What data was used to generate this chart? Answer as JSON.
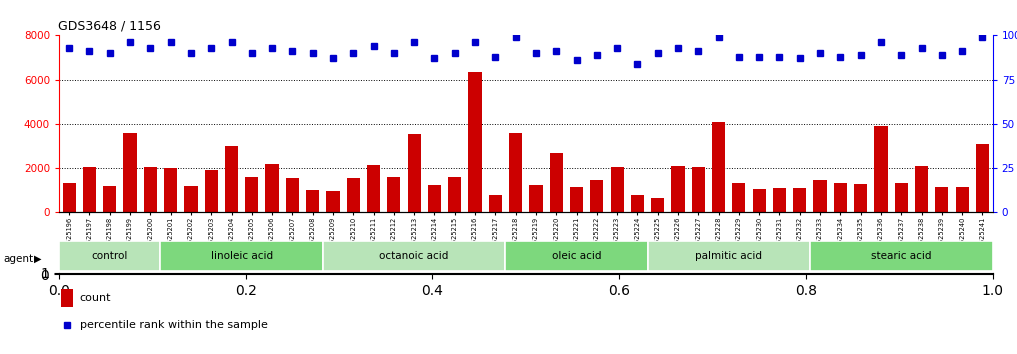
{
  "title": "GDS3648 / 1156",
  "samples": [
    "GSM525196",
    "GSM525197",
    "GSM525198",
    "GSM525199",
    "GSM525200",
    "GSM525201",
    "GSM525202",
    "GSM525203",
    "GSM525204",
    "GSM525205",
    "GSM525206",
    "GSM525207",
    "GSM525208",
    "GSM525209",
    "GSM525210",
    "GSM525211",
    "GSM525212",
    "GSM525213",
    "GSM525214",
    "GSM525215",
    "GSM525216",
    "GSM525217",
    "GSM525218",
    "GSM525219",
    "GSM525220",
    "GSM525221",
    "GSM525222",
    "GSM525223",
    "GSM525224",
    "GSM525225",
    "GSM525226",
    "GSM525227",
    "GSM525228",
    "GSM525229",
    "GSM525230",
    "GSM525231",
    "GSM525232",
    "GSM525233",
    "GSM525234",
    "GSM525235",
    "GSM525236",
    "GSM525237",
    "GSM525238",
    "GSM525239",
    "GSM525240",
    "GSM525241"
  ],
  "bar_values": [
    1350,
    2050,
    1200,
    3600,
    2050,
    2000,
    1200,
    1900,
    3000,
    1600,
    2200,
    1550,
    1000,
    950,
    1550,
    2150,
    1600,
    3550,
    1250,
    1600,
    6350,
    800,
    3600,
    1250,
    2700,
    1150,
    1450,
    2050,
    800,
    650,
    2100,
    2050,
    4100,
    1350,
    1050,
    1100,
    1100,
    1450,
    1350,
    1300,
    3900,
    1350,
    2100,
    1150,
    1150,
    3100
  ],
  "percentile_values": [
    93,
    91,
    90,
    96,
    93,
    96,
    90,
    93,
    96,
    90,
    93,
    91,
    90,
    87,
    90,
    94,
    90,
    96,
    87,
    90,
    96,
    88,
    99,
    90,
    91,
    86,
    89,
    93,
    84,
    90,
    93,
    91,
    99,
    88,
    88,
    88,
    87,
    90,
    88,
    89,
    96,
    89,
    93,
    89,
    91,
    99
  ],
  "groups": [
    {
      "label": "control",
      "start": 0,
      "end": 4
    },
    {
      "label": "linoleic acid",
      "start": 5,
      "end": 12
    },
    {
      "label": "octanoic acid",
      "start": 13,
      "end": 21
    },
    {
      "label": "oleic acid",
      "start": 22,
      "end": 28
    },
    {
      "label": "palmitic acid",
      "start": 29,
      "end": 36
    },
    {
      "label": "stearic acid",
      "start": 37,
      "end": 45
    }
  ],
  "bar_color": "#cc0000",
  "dot_color": "#0000cc",
  "background_color": "#ffffff",
  "plot_bg_color": "#ffffff",
  "group_colors": [
    "#b8e4b8",
    "#7dd87d",
    "#b8e4b8",
    "#7dd87d",
    "#b8e4b8",
    "#7dd87d"
  ],
  "agent_label": "agent",
  "ylim_left": [
    0,
    8000
  ],
  "ylim_right": [
    0,
    100
  ],
  "yticks_left": [
    0,
    2000,
    4000,
    6000,
    8000
  ],
  "yticks_right": [
    0,
    25,
    50,
    75,
    100
  ],
  "grid_values": [
    2000,
    4000,
    6000
  ],
  "legend_count_label": "count",
  "legend_pct_label": "percentile rank within the sample"
}
